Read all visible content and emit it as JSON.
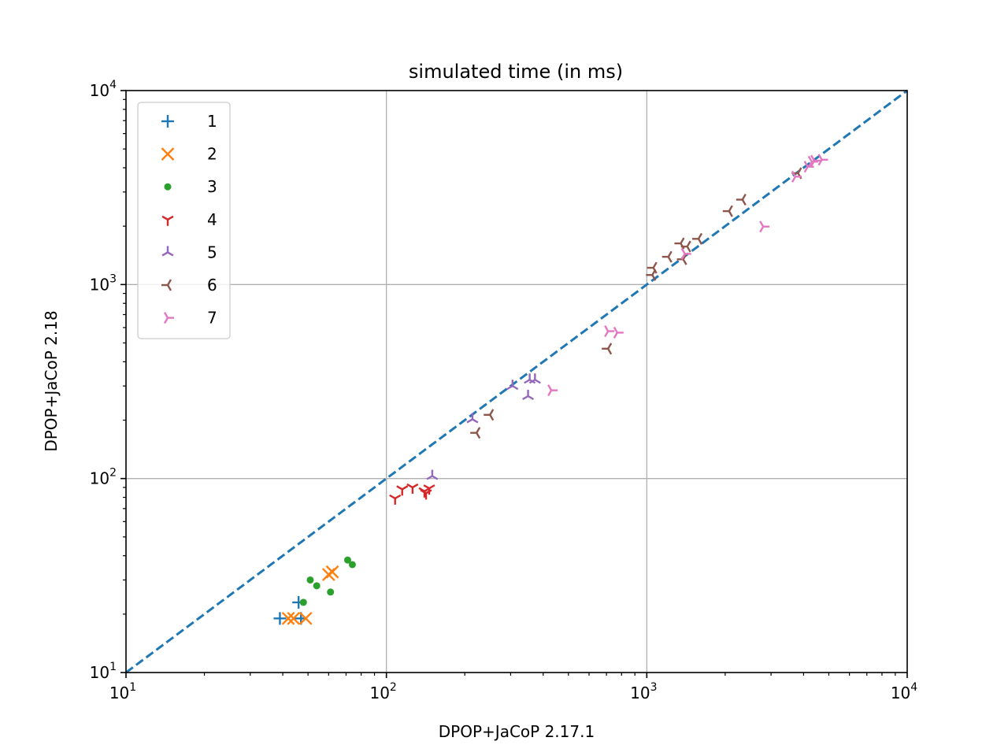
{
  "chart_data": {
    "type": "scatter",
    "title": "simulated time (in ms)",
    "xlabel": "DPOP+JaCoP 2.17.1",
    "ylabel": "DPOP+JaCoP 2.18",
    "xscale": "log",
    "yscale": "log",
    "xlim": [
      10,
      10000
    ],
    "ylim": [
      10,
      10000
    ],
    "x_ticks": [
      {
        "value": 10,
        "base": "10",
        "exp": "1"
      },
      {
        "value": 100,
        "base": "10",
        "exp": "2"
      },
      {
        "value": 1000,
        "base": "10",
        "exp": "3"
      },
      {
        "value": 10000,
        "base": "10",
        "exp": "4"
      }
    ],
    "y_ticks": [
      {
        "value": 10,
        "base": "10",
        "exp": "1"
      },
      {
        "value": 100,
        "base": "10",
        "exp": "2"
      },
      {
        "value": 1000,
        "base": "10",
        "exp": "3"
      },
      {
        "value": 10000,
        "base": "10",
        "exp": "4"
      }
    ],
    "grid": true,
    "legend_position": "top-left",
    "reference_line": {
      "style": "dashed",
      "color": "#1f77b4",
      "from": [
        10,
        10
      ],
      "to": [
        10000,
        10000
      ]
    },
    "series": [
      {
        "name": "1",
        "marker": "plus",
        "color": "#1f77b4",
        "points": [
          [
            39,
            19
          ],
          [
            46,
            23
          ],
          [
            47,
            19
          ]
        ]
      },
      {
        "name": "2",
        "marker": "x",
        "color": "#ff7f0e",
        "points": [
          [
            42,
            19
          ],
          [
            44,
            19
          ],
          [
            49,
            19
          ],
          [
            60,
            32
          ],
          [
            62,
            33
          ]
        ]
      },
      {
        "name": "3",
        "marker": "dot",
        "color": "#2ca02c",
        "points": [
          [
            48,
            23
          ],
          [
            51,
            30
          ],
          [
            54,
            28
          ],
          [
            61,
            26
          ],
          [
            71,
            38
          ],
          [
            74,
            36
          ]
        ]
      },
      {
        "name": "4",
        "marker": "tri_down",
        "color": "#d62728",
        "points": [
          [
            108,
            79
          ],
          [
            115,
            88
          ],
          [
            126,
            90
          ],
          [
            140,
            86
          ],
          [
            142,
            84
          ],
          [
            146,
            89
          ]
        ]
      },
      {
        "name": "5",
        "marker": "tri_up",
        "color": "#9467bd",
        "points": [
          [
            150,
            103
          ],
          [
            214,
            202
          ],
          [
            305,
            300
          ],
          [
            350,
            266
          ],
          [
            355,
            323
          ],
          [
            372,
            323
          ]
        ]
      },
      {
        "name": "6",
        "marker": "tri_left",
        "color": "#8c564b",
        "points": [
          [
            222,
            172
          ],
          [
            250,
            213
          ],
          [
            710,
            467
          ],
          [
            1050,
            1120
          ],
          [
            1060,
            1220
          ],
          [
            1210,
            1390
          ],
          [
            1350,
            1630
          ],
          [
            1380,
            1350
          ],
          [
            1430,
            1570
          ],
          [
            1580,
            1720
          ],
          [
            2070,
            2390
          ],
          [
            2330,
            2740
          ],
          [
            3810,
            3750
          ]
        ]
      },
      {
        "name": "7",
        "marker": "tri_right",
        "color": "#e377c2",
        "points": [
          [
            430,
            285
          ],
          [
            710,
            575
          ],
          [
            770,
            565
          ],
          [
            1400,
            1440
          ],
          [
            2800,
            1990
          ],
          [
            3720,
            3600
          ],
          [
            4150,
            4050
          ],
          [
            4300,
            4300
          ],
          [
            4400,
            4350
          ],
          [
            4700,
            4400
          ]
        ]
      }
    ]
  }
}
